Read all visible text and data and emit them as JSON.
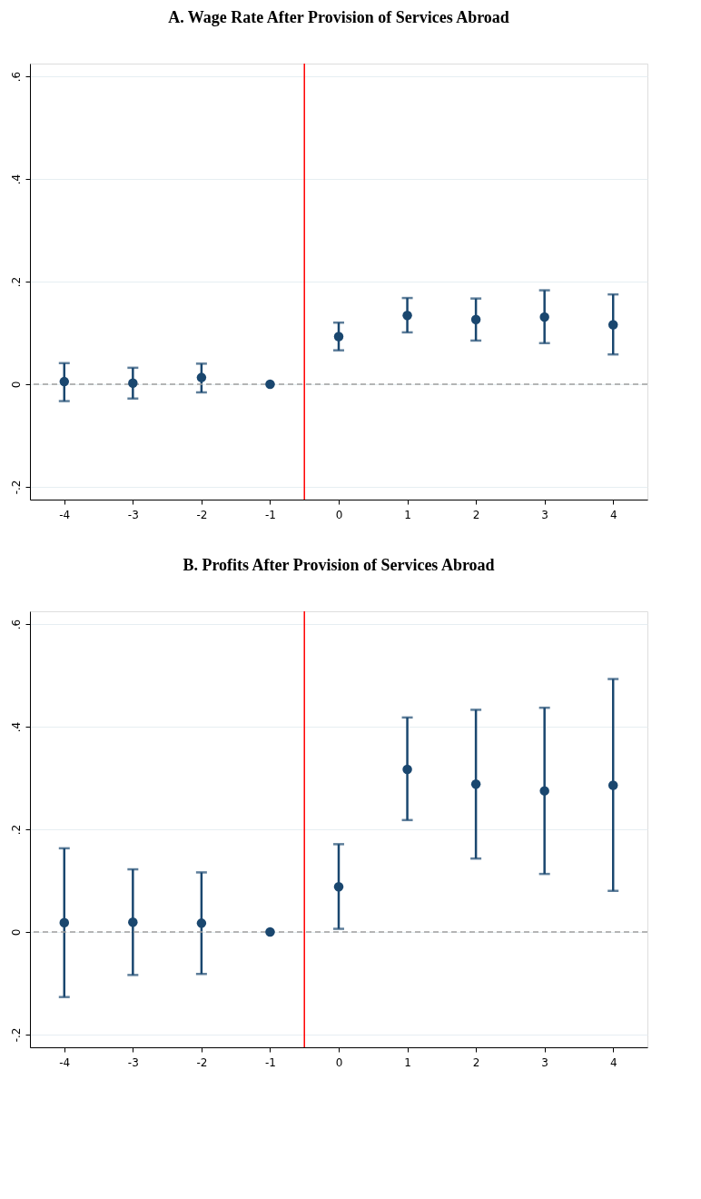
{
  "chart_data": [
    {
      "type": "scatter",
      "title": "A. Wage Rate After Provision of Services Abroad",
      "x": [
        -4,
        -3,
        -2,
        -1,
        0,
        1,
        2,
        3,
        4
      ],
      "series": [
        {
          "color": "#1a476f",
          "values": [
            0.005,
            0.002,
            0.013,
            0,
            0.093,
            0.134,
            0.126,
            0.131,
            0.116
          ],
          "errors": [
            [
              -0.033,
              0.041
            ],
            [
              -0.028,
              0.032
            ],
            [
              -0.016,
              0.04
            ],
            null,
            [
              0.066,
              0.12
            ],
            [
              0.101,
              0.168
            ],
            [
              0.085,
              0.167
            ],
            [
              0.08,
              0.183
            ],
            [
              0.058,
              0.175
            ]
          ]
        }
      ],
      "xlim": [
        -4.5,
        4.5
      ],
      "xticks": [
        -4,
        -3,
        -2,
        -1,
        0,
        1,
        2,
        3,
        4
      ],
      "ylim": [
        -0.225,
        0.625
      ],
      "yticks": [
        {
          "value": -0.2,
          "label": "-.2"
        },
        0,
        {
          "value": 0.2,
          "label": ".2"
        },
        {
          "value": 0.4,
          "label": ".4"
        },
        {
          "value": 0.6,
          "label": ".6"
        }
      ],
      "grid": "y",
      "marker": "circle",
      "ref_lines": [
        {
          "axis": "y",
          "value": 0,
          "color": "#a0a0a0",
          "line_style": "dashed"
        },
        {
          "axis": "x",
          "value": -0.5,
          "color": "#ff0000",
          "line_style": "solid"
        }
      ]
    },
    {
      "type": "scatter",
      "title": "B. Profits After Provision of Services Abroad",
      "x": [
        -4,
        -3,
        -2,
        -1,
        0,
        1,
        2,
        3,
        4
      ],
      "series": [
        {
          "color": "#1a476f",
          "values": [
            0.018,
            0.019,
            0.017,
            0,
            0.088,
            0.317,
            0.288,
            0.275,
            0.286
          ],
          "errors": [
            [
              -0.127,
              0.163
            ],
            [
              -0.084,
              0.122
            ],
            [
              -0.082,
              0.116
            ],
            null,
            [
              0.006,
              0.171
            ],
            [
              0.218,
              0.418
            ],
            [
              0.143,
              0.433
            ],
            [
              0.113,
              0.437
            ],
            [
              0.08,
              0.493
            ]
          ]
        }
      ],
      "xlim": [
        -4.5,
        4.5
      ],
      "xticks": [
        -4,
        -3,
        -2,
        -1,
        0,
        1,
        2,
        3,
        4
      ],
      "ylim": [
        -0.225,
        0.625
      ],
      "yticks": [
        {
          "value": -0.2,
          "label": "-.2"
        },
        0,
        {
          "value": 0.2,
          "label": ".2"
        },
        {
          "value": 0.4,
          "label": ".4"
        },
        {
          "value": 0.6,
          "label": ".6"
        }
      ],
      "grid": "y",
      "marker": "circle",
      "ref_lines": [
        {
          "axis": "y",
          "value": 0,
          "color": "#a0a0a0",
          "line_style": "dashed"
        },
        {
          "axis": "x",
          "value": -0.5,
          "color": "#ff0000",
          "line_style": "solid"
        }
      ]
    }
  ]
}
